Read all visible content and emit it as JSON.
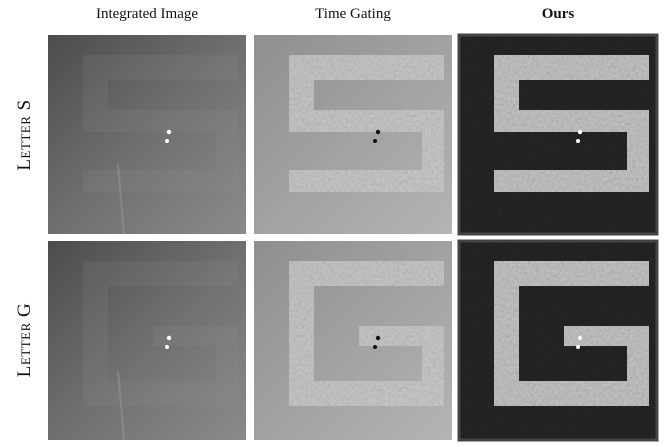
{
  "columns": [
    "Integrated Image",
    "Time Gating",
    "Ours"
  ],
  "rows": [
    "Letter S",
    "Letter G"
  ]
}
